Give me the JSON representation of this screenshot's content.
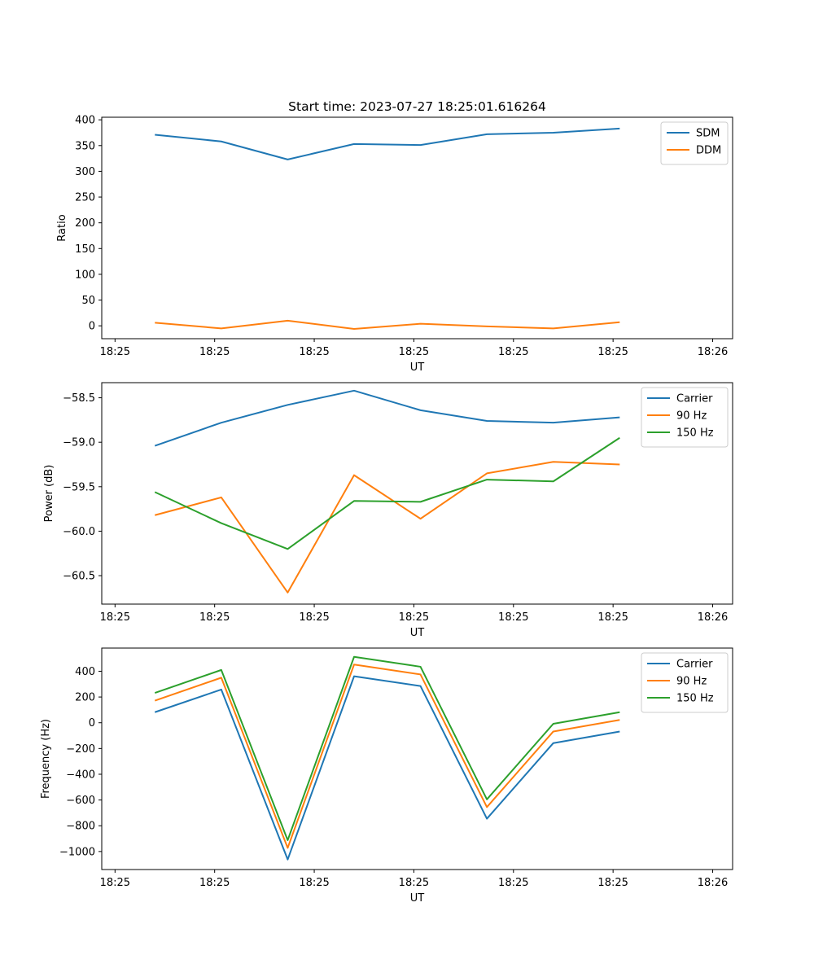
{
  "figure_title": "Start time: 2023-07-27 18:25:01.616264",
  "chart_data": [
    {
      "type": "line",
      "title": "Start time: 2023-07-27 18:25:01.616264",
      "xlabel": "UT",
      "ylabel": "Ratio",
      "x": [
        1,
        2,
        3,
        4,
        5,
        6,
        7,
        8
      ],
      "xlim": [
        0.2,
        9.7
      ],
      "ylim": [
        -25,
        405
      ],
      "yticks": [
        0,
        50,
        100,
        150,
        200,
        250,
        300,
        350,
        400
      ],
      "ytick_labels": [
        "0",
        "50",
        "100",
        "150",
        "200",
        "250",
        "300",
        "350",
        "400"
      ],
      "xticks": [
        0.4,
        1.9,
        3.4,
        4.9,
        6.4,
        7.9,
        9.4
      ],
      "xtick_labels": [
        "18:25",
        "18:25",
        "18:25",
        "18:25",
        "18:25",
        "18:25",
        "18:26"
      ],
      "legend_position": "top-right",
      "series": [
        {
          "name": "SDM",
          "color": "#1f77b4",
          "values": [
            371,
            358,
            323,
            353,
            351,
            372,
            375,
            383
          ]
        },
        {
          "name": "DDM",
          "color": "#ff7f0e",
          "values": [
            6,
            -5,
            10,
            -6,
            4,
            -1,
            -5,
            7
          ]
        }
      ]
    },
    {
      "type": "line",
      "xlabel": "UT",
      "ylabel": "Power (dB)",
      "x": [
        1,
        2,
        3,
        4,
        5,
        6,
        7,
        8
      ],
      "xlim": [
        0.2,
        9.7
      ],
      "ylim": [
        -60.82,
        -58.33
      ],
      "yticks": [
        -60.5,
        -60.0,
        -59.5,
        -59.0,
        -58.5
      ],
      "ytick_labels": [
        "−60.5",
        "−60.0",
        "−59.5",
        "−59.0",
        "−58.5"
      ],
      "xticks": [
        0.4,
        1.9,
        3.4,
        4.9,
        6.4,
        7.9,
        9.4
      ],
      "xtick_labels": [
        "18:25",
        "18:25",
        "18:25",
        "18:25",
        "18:25",
        "18:25",
        "18:26"
      ],
      "legend_position": "top-right",
      "series": [
        {
          "name": "Carrier",
          "color": "#1f77b4",
          "values": [
            -59.04,
            -58.78,
            -58.58,
            -58.42,
            -58.64,
            -58.76,
            -58.78,
            -58.72
          ]
        },
        {
          "name": "90 Hz",
          "color": "#ff7f0e",
          "values": [
            -59.82,
            -59.62,
            -60.69,
            -59.37,
            -59.86,
            -59.35,
            -59.22,
            -59.25
          ]
        },
        {
          "name": "150 Hz",
          "color": "#2ca02c",
          "values": [
            -59.56,
            -59.91,
            -60.2,
            -59.66,
            -59.67,
            -59.42,
            -59.44,
            -58.95
          ]
        }
      ]
    },
    {
      "type": "line",
      "xlabel": "UT",
      "ylabel": "Frequency (Hz)",
      "x": [
        1,
        2,
        3,
        4,
        5,
        6,
        7,
        8
      ],
      "xlim": [
        0.2,
        9.7
      ],
      "ylim": [
        -1140,
        580
      ],
      "yticks": [
        -1000,
        -800,
        -600,
        -400,
        -200,
        0,
        200,
        400
      ],
      "ytick_labels": [
        "−1000",
        "−800",
        "−600",
        "−400",
        "−200",
        "0",
        "200",
        "400"
      ],
      "xticks": [
        0.4,
        1.9,
        3.4,
        4.9,
        6.4,
        7.9,
        9.4
      ],
      "xtick_labels": [
        "18:25",
        "18:25",
        "18:25",
        "18:25",
        "18:25",
        "18:25",
        "18:26"
      ],
      "legend_position": "top-right",
      "series": [
        {
          "name": "Carrier",
          "color": "#1f77b4",
          "values": [
            82,
            258,
            -1062,
            361,
            285,
            -745,
            -158,
            -68
          ]
        },
        {
          "name": "90 Hz",
          "color": "#ff7f0e",
          "values": [
            172,
            350,
            -972,
            452,
            375,
            -655,
            -68,
            22
          ]
        },
        {
          "name": "150 Hz",
          "color": "#2ca02c",
          "values": [
            232,
            410,
            -912,
            512,
            435,
            -595,
            -8,
            82
          ]
        }
      ]
    }
  ]
}
